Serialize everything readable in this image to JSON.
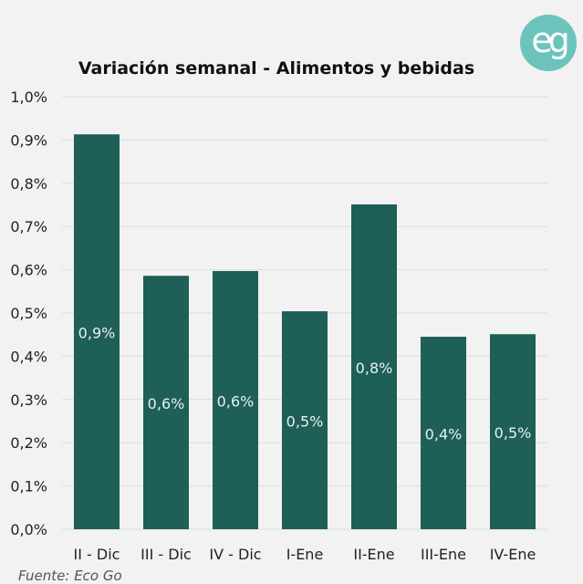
{
  "logo": "eg",
  "source": "Fuente: Eco Go",
  "colors": {
    "bar": "#1e5f58",
    "label": "#e8f2f0",
    "grid": "#dcdcdc",
    "text": "#222222"
  },
  "chart_data": {
    "type": "bar",
    "title": "Variación semanal - Alimentos y bebidas",
    "xlabel": "",
    "ylabel": "",
    "ylim": [
      0,
      1.0
    ],
    "grid": true,
    "yticks": [
      0,
      0.1,
      0.2,
      0.3,
      0.4,
      0.5,
      0.6,
      0.7,
      0.8,
      0.9,
      1.0
    ],
    "ytick_labels": [
      "0,0%",
      "0,1%",
      "0,2%",
      "0,3%",
      "0,4%",
      "0,5%",
      "0,6%",
      "0,7%",
      "0,8%",
      "0,9%",
      "1,0%"
    ],
    "categories": [
      "II - Dic",
      "III - Dic",
      "IV - Dic",
      "I-Ene",
      "II-Ene",
      "III-Ene",
      "IV-Ene"
    ],
    "values": [
      0.913,
      0.586,
      0.597,
      0.504,
      0.751,
      0.445,
      0.451
    ],
    "data_labels": [
      "0,9%",
      "0,6%",
      "0,6%",
      "0,5%",
      "0,8%",
      "0,4%",
      "0,5%"
    ]
  }
}
